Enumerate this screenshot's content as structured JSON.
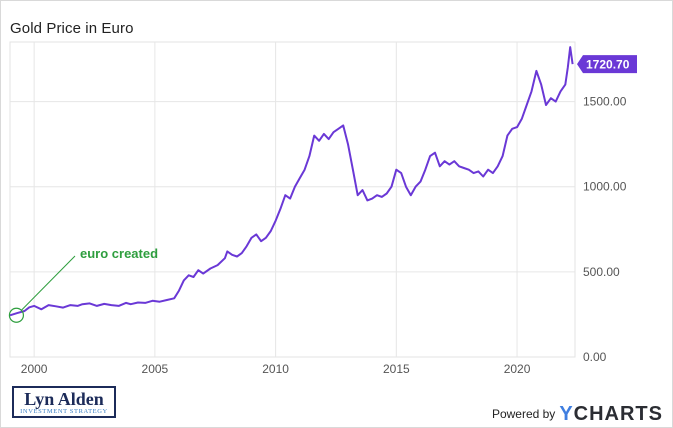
{
  "chart_data": {
    "type": "line",
    "title": "Gold Price in Euro",
    "xlabel": "",
    "ylabel": "",
    "xlim": [
      1999.0,
      2022.4
    ],
    "ylim": [
      0,
      1850
    ],
    "x_ticks": [
      2000,
      2005,
      2010,
      2015,
      2020
    ],
    "y_ticks": [
      0,
      500,
      1000,
      1500
    ],
    "y_tick_labels": [
      "0.00",
      "500.00",
      "1000.00",
      "1500.00"
    ],
    "grid": true,
    "line_color": "#6a38d6",
    "last_value_label": "1720.70",
    "annotation": {
      "text": "euro created",
      "color": "#2e9e3e",
      "x": 1999.1,
      "y": 245
    },
    "series": [
      {
        "name": "",
        "x": [
          1999.0,
          1999.3,
          1999.6,
          1999.8,
          2000.0,
          2000.3,
          2000.6,
          2000.9,
          2001.2,
          2001.5,
          2001.8,
          2002.0,
          2002.3,
          2002.6,
          2002.9,
          2003.2,
          2003.5,
          2003.8,
          2004.0,
          2004.3,
          2004.6,
          2004.9,
          2005.2,
          2005.5,
          2005.8,
          2006.0,
          2006.2,
          2006.4,
          2006.6,
          2006.8,
          2007.0,
          2007.3,
          2007.6,
          2007.9,
          2008.0,
          2008.2,
          2008.4,
          2008.6,
          2008.8,
          2009.0,
          2009.2,
          2009.4,
          2009.6,
          2009.8,
          2010.0,
          2010.2,
          2010.4,
          2010.6,
          2010.8,
          2011.0,
          2011.2,
          2011.4,
          2011.6,
          2011.8,
          2012.0,
          2012.2,
          2012.4,
          2012.6,
          2012.8,
          2013.0,
          2013.2,
          2013.4,
          2013.6,
          2013.8,
          2014.0,
          2014.2,
          2014.4,
          2014.6,
          2014.8,
          2015.0,
          2015.2,
          2015.4,
          2015.6,
          2015.8,
          2016.0,
          2016.2,
          2016.4,
          2016.6,
          2016.8,
          2017.0,
          2017.2,
          2017.4,
          2017.6,
          2017.8,
          2018.0,
          2018.2,
          2018.4,
          2018.6,
          2018.8,
          2019.0,
          2019.2,
          2019.4,
          2019.6,
          2019.8,
          2020.0,
          2020.2,
          2020.4,
          2020.6,
          2020.8,
          2021.0,
          2021.2,
          2021.4,
          2021.6,
          2021.8,
          2022.0,
          2022.1,
          2022.2,
          2022.3
        ],
        "y": [
          245,
          258,
          270,
          292,
          300,
          280,
          305,
          298,
          290,
          305,
          300,
          310,
          315,
          300,
          312,
          305,
          300,
          318,
          310,
          320,
          318,
          330,
          325,
          335,
          345,
          390,
          450,
          480,
          470,
          510,
          490,
          520,
          540,
          580,
          620,
          600,
          590,
          610,
          650,
          700,
          720,
          680,
          700,
          740,
          800,
          870,
          950,
          930,
          1000,
          1050,
          1100,
          1180,
          1300,
          1270,
          1310,
          1280,
          1320,
          1340,
          1360,
          1250,
          1100,
          950,
          980,
          920,
          930,
          950,
          940,
          960,
          1000,
          1100,
          1080,
          1000,
          950,
          1000,
          1030,
          1100,
          1180,
          1200,
          1120,
          1150,
          1130,
          1150,
          1120,
          1110,
          1100,
          1080,
          1090,
          1060,
          1100,
          1080,
          1120,
          1180,
          1300,
          1340,
          1350,
          1400,
          1480,
          1560,
          1680,
          1600,
          1480,
          1520,
          1500,
          1560,
          1600,
          1700,
          1820,
          1720
        ]
      }
    ]
  },
  "branding": {
    "logo_name": "Lyn Alden",
    "logo_tagline": "INVESTMENT STRATEGY",
    "powered_by": "Powered by",
    "brand_y": "Y",
    "brand_rest": "CHARTS"
  }
}
